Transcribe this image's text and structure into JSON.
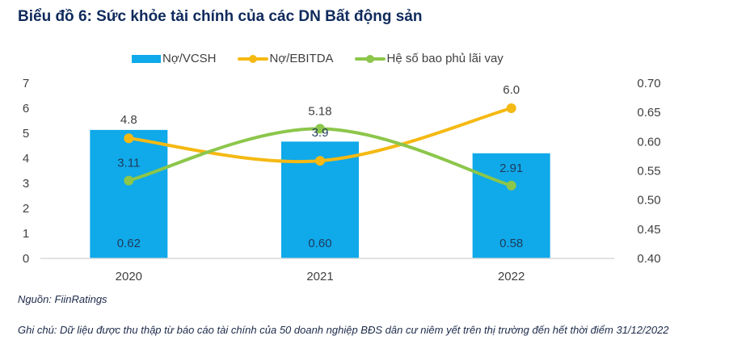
{
  "title": "Biểu đồ 6: Sức khỏe tài chính của các DN Bất động sản",
  "source": "Nguồn: FiinRatings",
  "note": "Ghi chú: Dữ liệu được thu thập từ báo cáo tài chính của 50 doanh nghiệp BĐS dân cư niêm yết trên thị trường đến hết thời điểm 31/12/2022",
  "colors": {
    "bar": "#10a9ea",
    "debt_ebitda": "#f5b913",
    "coverage": "#8cc64b",
    "text": "#404040",
    "title": "#0f2a5c"
  },
  "chart_data": {
    "type": "bar+line",
    "title": "Biểu đồ 6: Sức khỏe tài chính của các DN Bất động sản",
    "categories": [
      "2020",
      "2021",
      "2022"
    ],
    "legend_position": "top",
    "grid": false,
    "left_axis": {
      "ylim": [
        0,
        7
      ],
      "ticks": [
        "0",
        "1",
        "2",
        "3",
        "4",
        "5",
        "6",
        "7"
      ]
    },
    "right_axis": {
      "ylim": [
        0.4,
        0.7
      ],
      "ticks": [
        "0.40",
        "0.45",
        "0.50",
        "0.55",
        "0.60",
        "0.65",
        "0.70"
      ]
    },
    "series": [
      {
        "name": "Nợ/VCSH",
        "type": "bar",
        "axis": "right",
        "values": [
          0.62,
          0.6,
          0.58
        ],
        "labels": [
          "0.62",
          "0.60",
          "0.58"
        ]
      },
      {
        "name": "Nợ/EBITDA",
        "type": "line",
        "axis": "left",
        "values": [
          4.8,
          3.9,
          6.0
        ],
        "labels": [
          "4.8",
          "3.9",
          "6.0"
        ]
      },
      {
        "name": "Hệ số bao phủ lãi vay",
        "type": "line",
        "axis": "left",
        "values": [
          3.11,
          5.18,
          2.91
        ],
        "labels": [
          "3.11",
          "5.18",
          "2.91"
        ]
      }
    ]
  }
}
